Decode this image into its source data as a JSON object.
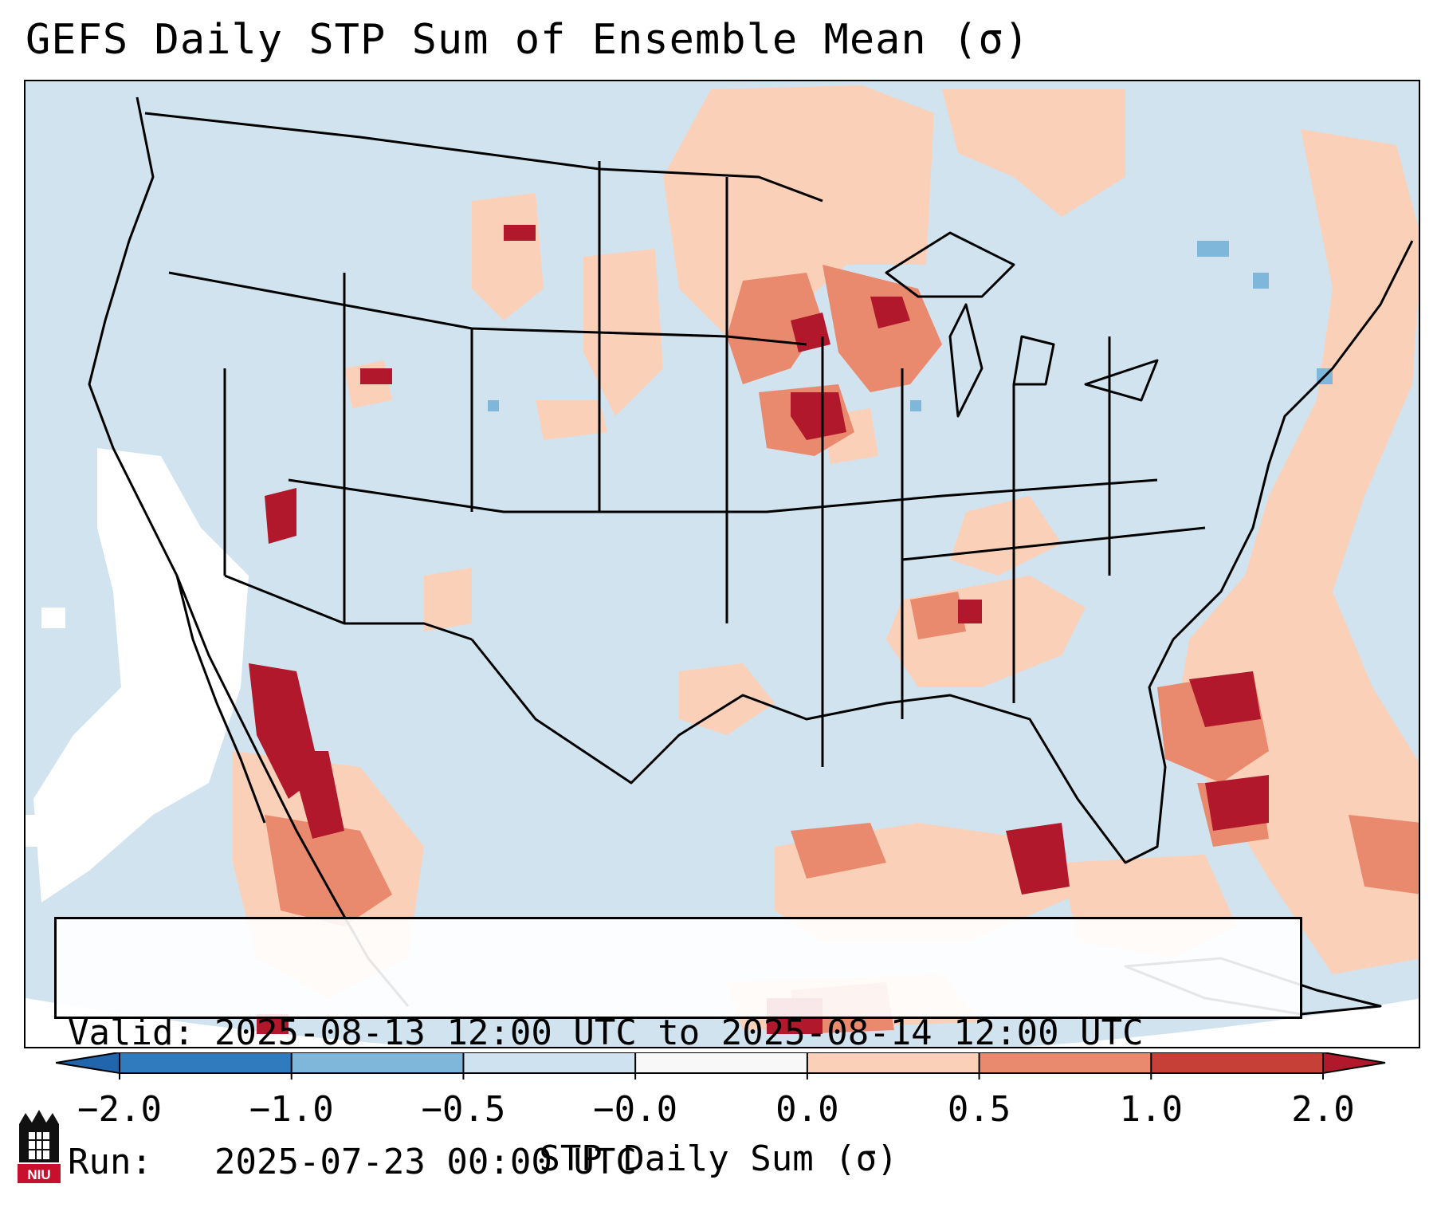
{
  "title": "GEFS Daily STP Sum of Ensemble Mean (σ)",
  "info": {
    "valid_label": "Valid:",
    "valid_value": "2025-08-13 12:00 UTC to 2025-08-14 12:00 UTC",
    "run_label": "Run:",
    "run_value": "2025-07-23 00:00 UTC"
  },
  "colorbar": {
    "label": "STP Daily Sum (σ)",
    "ticks": [
      "−2.0",
      "−1.0",
      "−0.5",
      "−0.0",
      "0.0",
      "0.5",
      "1.0",
      "2.0"
    ],
    "colors": [
      "#2f7bbd",
      "#7fb7da",
      "#cfe2ef",
      "#f8f8f8",
      "#fbd0b8",
      "#e98a6e",
      "#c64038"
    ],
    "under_color": "#2166ac",
    "over_color": "#b2182b"
  },
  "map": {
    "ocean_color": "#d1e3ef",
    "land_color": "#d1e3ef",
    "region": "Contiguous United States, northern Mexico, southern Canada"
  },
  "logo": {
    "text": "NIU"
  }
}
